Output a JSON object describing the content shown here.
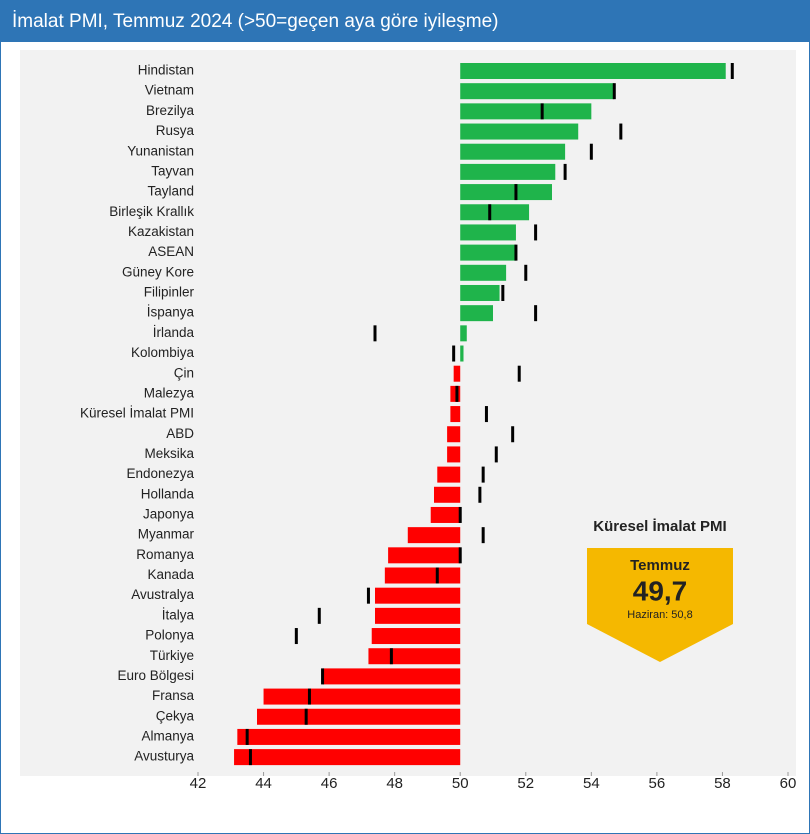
{
  "chart_data": {
    "type": "hbar",
    "title": "İmalat PMI, Temmuz 2024 (>50=geçen aya göre iyileşme)",
    "categories": [
      "Hindistan",
      "Vietnam",
      "Brezilya",
      "Rusya",
      "Yunanistan",
      "Tayvan",
      "Tayland",
      "Birleşik Krallık",
      "Kazakistan",
      "ASEAN",
      "Güney Kore",
      "Filipinler",
      "İspanya",
      "İrlanda",
      "Kolombiya",
      "Çin",
      "Malezya",
      "Küresel İmalat PMI",
      "ABD",
      "Meksika",
      "Endonezya",
      "Hollanda",
      "Japonya",
      "Myanmar",
      "Romanya",
      "Kanada",
      "Avustralya",
      "İtalya",
      "Polonya",
      "Türkiye",
      "Euro Bölgesi",
      "Fransa",
      "Çekya",
      "Almanya",
      "Avusturya"
    ],
    "values": [
      58.1,
      54.7,
      54.0,
      53.6,
      53.2,
      52.9,
      52.8,
      52.1,
      51.7,
      51.7,
      51.4,
      51.2,
      51.0,
      50.2,
      50.1,
      49.8,
      49.7,
      49.7,
      49.6,
      49.6,
      49.3,
      49.2,
      49.1,
      48.4,
      47.8,
      47.7,
      47.4,
      47.4,
      47.3,
      47.2,
      45.8,
      44.0,
      43.8,
      43.2,
      43.1
    ],
    "prior_values": [
      58.3,
      54.7,
      52.5,
      54.9,
      54.0,
      53.2,
      51.7,
      50.9,
      52.3,
      51.7,
      52.0,
      51.3,
      52.3,
      47.4,
      49.8,
      51.8,
      49.9,
      50.8,
      51.6,
      51.1,
      50.7,
      50.6,
      50.0,
      50.7,
      50.0,
      49.3,
      47.2,
      45.7,
      45.0,
      47.9,
      45.8,
      45.4,
      45.3,
      43.5,
      43.6
    ],
    "base": 50,
    "positive_color": "#1fb44b",
    "negative_color": "#ff0000",
    "prior_color": "#000000",
    "xlim": [
      42,
      60
    ],
    "xticks": [
      42,
      44,
      46,
      48,
      50,
      52,
      54,
      56,
      58,
      60
    ],
    "annotation": {
      "title": "Küresel İmalat PMI",
      "month": "Temmuz",
      "value": "49,7",
      "previous": "Haziran: 50,8"
    }
  }
}
